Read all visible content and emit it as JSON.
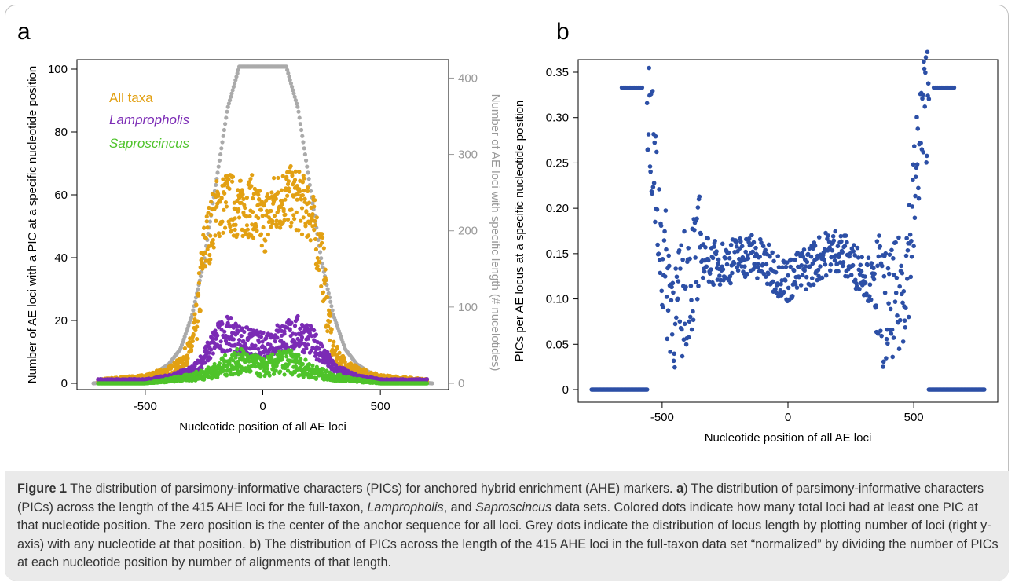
{
  "panels": {
    "a": "a",
    "b": "b"
  },
  "chart_data": [
    {
      "type": "scatter",
      "panel": "a",
      "xlabel": "Nucleotide position of all AE loci",
      "ylabel": "Number of AE loci with a PIC at a specific nucleotide position",
      "y2label": "Number of AE loci with specific length (# nucelotides)",
      "xlim": [
        -750,
        750
      ],
      "ylim": [
        0,
        102
      ],
      "y2lim": [
        0,
        420
      ],
      "xticks": [
        "-500",
        "0",
        "500"
      ],
      "xtick_values": [
        -500,
        0,
        500
      ],
      "yticks": [
        "0",
        "20",
        "40",
        "60",
        "80",
        "100"
      ],
      "ytick_values": [
        0,
        20,
        40,
        60,
        80,
        100
      ],
      "y2ticks": [
        "0",
        "100",
        "200",
        "300",
        "400"
      ],
      "y2tick_values": [
        0,
        100,
        200,
        300,
        400
      ],
      "legend": [
        "All taxa",
        "Lampropholis",
        "Saproscincus"
      ],
      "colors": {
        "All taxa": "#e2a013",
        "Lampropholis": "#7b2bb5",
        "Saproscincus": "#4ec32a",
        "length": "#aaaaaa"
      },
      "series": [
        {
          "name": "All taxa",
          "axis": "left",
          "x": [
            -700,
            -500,
            -400,
            -350,
            -300,
            -280,
            -250,
            -200,
            -150,
            -100,
            -50,
            0,
            50,
            100,
            150,
            200,
            250,
            280,
            300,
            350,
            400,
            500,
            700
          ],
          "y": [
            1,
            2,
            4,
            6,
            12,
            20,
            42,
            55,
            58,
            55,
            57,
            50,
            57,
            60,
            58,
            55,
            40,
            20,
            10,
            6,
            4,
            2,
            1
          ]
        },
        {
          "name": "Lampropholis",
          "axis": "left",
          "x": [
            -700,
            -500,
            -400,
            -300,
            -250,
            -200,
            -150,
            -100,
            -50,
            0,
            50,
            100,
            150,
            200,
            250,
            300,
            400,
            500,
            700
          ],
          "y": [
            1,
            1,
            2,
            4,
            8,
            14,
            16,
            14,
            13,
            12,
            14,
            15,
            16,
            14,
            10,
            5,
            2,
            1,
            1
          ]
        },
        {
          "name": "Saproscincus",
          "axis": "left",
          "x": [
            -700,
            -500,
            -400,
            -300,
            -200,
            -150,
            -100,
            -50,
            0,
            50,
            100,
            150,
            200,
            300,
            400,
            500,
            700
          ],
          "y": [
            0,
            0,
            1,
            2,
            4,
            6,
            7,
            6,
            5,
            6,
            7,
            6,
            4,
            2,
            1,
            0,
            0
          ]
        },
        {
          "name": "length",
          "axis": "right",
          "x": [
            -720,
            -600,
            -500,
            -450,
            -400,
            -350,
            -300,
            -250,
            -200,
            -150,
            -100,
            100,
            150,
            200,
            250,
            300,
            350,
            400,
            450,
            500,
            600,
            720
          ],
          "y": [
            0,
            3,
            8,
            15,
            25,
            45,
            90,
            160,
            260,
            360,
            415,
            415,
            360,
            260,
            160,
            90,
            45,
            25,
            15,
            8,
            3,
            0
          ]
        }
      ]
    },
    {
      "type": "scatter",
      "panel": "b",
      "xlabel": "Nucleotide position of all AE loci",
      "ylabel": "PICs per AE locus at a specific nucleotide position",
      "xlim": [
        -790,
        790
      ],
      "ylim": [
        0,
        0.35
      ],
      "xticks": [
        "-500",
        "0",
        "500"
      ],
      "xtick_values": [
        -500,
        0,
        500
      ],
      "yticks": [
        "0",
        "0.05",
        "0.10",
        "0.15",
        "0.20",
        "0.25",
        "0.30",
        "0.35"
      ],
      "ytick_values": [
        0,
        0.05,
        0.1,
        0.15,
        0.2,
        0.25,
        0.3,
        0.35
      ],
      "color": "#2c4fa6",
      "series": [
        {
          "name": "",
          "x": [
            -780,
            -600,
            -560,
            -520,
            -500,
            -480,
            -460,
            -440,
            -400,
            -350,
            -300,
            -250,
            -200,
            -150,
            -100,
            -50,
            0,
            50,
            100,
            150,
            200,
            250,
            300,
            350,
            400,
            440,
            460,
            480,
            500,
            520,
            560,
            600,
            780
          ],
          "y": [
            0,
            0,
            0.333,
            0.2,
            0.15,
            0.12,
            0.1,
            0.08,
            0.12,
            0.15,
            0.14,
            0.14,
            0.145,
            0.15,
            0.14,
            0.13,
            0.12,
            0.13,
            0.14,
            0.15,
            0.155,
            0.14,
            0.13,
            0.11,
            0.08,
            0.1,
            0.12,
            0.15,
            0.2,
            0.27,
            0.333,
            0,
            0
          ]
        }
      ]
    }
  ],
  "caption": {
    "label": "Figure 1",
    "text_html": " The distribution of parsimony-informative characters (PICs) for anchored hybrid enrichment (AHE) markers. <b>a</b>) The distribution of parsimony-informative characters (PICs) across the length of the 415 AHE loci for the full-taxon, <i>Lampropholis</i>, and <i>Saproscincus</i> data sets. Colored dots indicate how many total loci had at least one PIC at that nucleotide position. The zero position is the center of the anchor sequence for all loci. Grey dots indicate the distribution of locus length by plotting number of loci (right y-axis) with any nucleotide at that position. <b>b</b>) The distribution of PICs across the length of the 415 AHE loci in the full-taxon data set “normalized” by dividing the number of PICs at each nucleotide position by number of alignments of that length."
  }
}
